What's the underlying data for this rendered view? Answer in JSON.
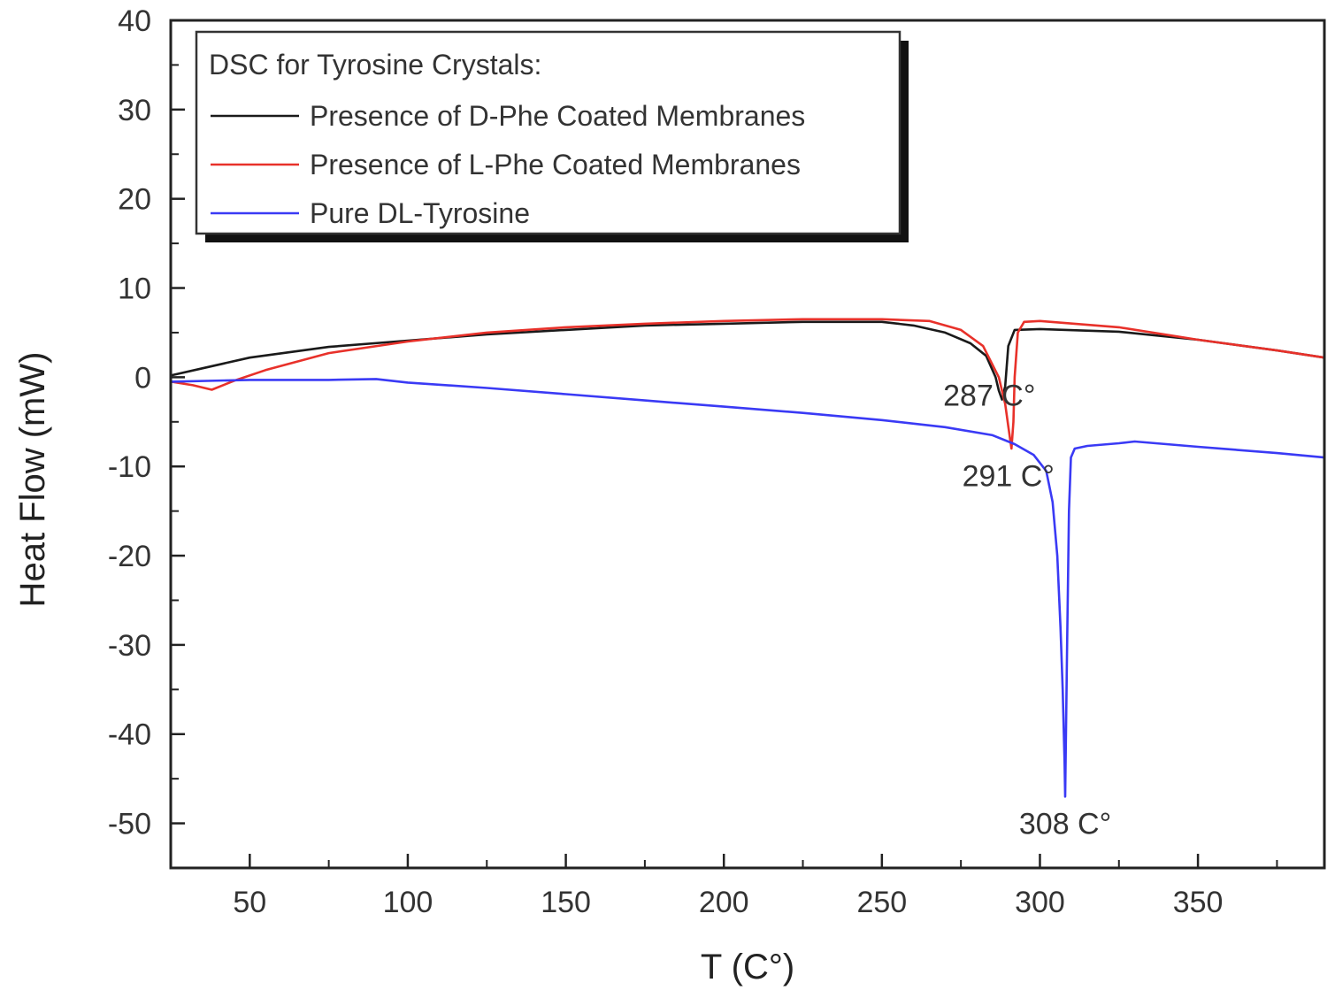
{
  "chart_data": {
    "type": "line",
    "xlabel": "T (C°)",
    "ylabel": "Heat Flow (mW)",
    "xlim": [
      25,
      390
    ],
    "ylim": [
      -55,
      40
    ],
    "x_ticks": [
      50,
      100,
      150,
      200,
      250,
      300,
      350
    ],
    "y_ticks": [
      40,
      30,
      20,
      10,
      0,
      -10,
      -20,
      -30,
      -40,
      -50
    ],
    "grid": false,
    "legend": {
      "title": "DSC for Tyrosine Crystals:",
      "placement": "top-left"
    },
    "series": [
      {
        "name": "Presence of D-Phe Coated Membranes",
        "color": "#1a1a1a",
        "points": [
          [
            25,
            0.2
          ],
          [
            35,
            1
          ],
          [
            50,
            2.2
          ],
          [
            75,
            3.4
          ],
          [
            100,
            4.1
          ],
          [
            125,
            4.8
          ],
          [
            150,
            5.3
          ],
          [
            175,
            5.8
          ],
          [
            200,
            6
          ],
          [
            225,
            6.2
          ],
          [
            250,
            6.2
          ],
          [
            260,
            5.8
          ],
          [
            270,
            5
          ],
          [
            278,
            3.8
          ],
          [
            283,
            2.4
          ],
          [
            286,
            0
          ],
          [
            287,
            -1.5
          ],
          [
            288,
            -2.5
          ],
          [
            289,
            -1
          ],
          [
            290,
            3.5
          ],
          [
            292,
            5.3
          ],
          [
            300,
            5.4
          ],
          [
            325,
            5.1
          ],
          [
            350,
            4.2
          ],
          [
            375,
            3
          ],
          [
            390,
            2.2
          ]
        ]
      },
      {
        "name": "Presence of L-Phe Coated Membranes",
        "color": "#e8312a",
        "points": [
          [
            25,
            -0.5
          ],
          [
            32,
            -0.9
          ],
          [
            38,
            -1.4
          ],
          [
            45,
            -0.4
          ],
          [
            55,
            0.8
          ],
          [
            75,
            2.7
          ],
          [
            100,
            4
          ],
          [
            125,
            5
          ],
          [
            150,
            5.6
          ],
          [
            175,
            6
          ],
          [
            200,
            6.3
          ],
          [
            225,
            6.5
          ],
          [
            250,
            6.5
          ],
          [
            265,
            6.3
          ],
          [
            275,
            5.3
          ],
          [
            282,
            3.5
          ],
          [
            287,
            0
          ],
          [
            289,
            -3
          ],
          [
            290,
            -5.5
          ],
          [
            291,
            -8
          ],
          [
            291.6,
            -5
          ],
          [
            292,
            0
          ],
          [
            293,
            5
          ],
          [
            295,
            6.2
          ],
          [
            300,
            6.3
          ],
          [
            325,
            5.6
          ],
          [
            350,
            4.2
          ],
          [
            375,
            3
          ],
          [
            390,
            2.2
          ]
        ]
      },
      {
        "name": "Pure DL-Tyrosine",
        "color": "#3a3af5",
        "points": [
          [
            25,
            -0.5
          ],
          [
            50,
            -0.3
          ],
          [
            75,
            -0.3
          ],
          [
            90,
            -0.2
          ],
          [
            100,
            -0.6
          ],
          [
            125,
            -1.2
          ],
          [
            150,
            -1.9
          ],
          [
            175,
            -2.6
          ],
          [
            200,
            -3.3
          ],
          [
            225,
            -4
          ],
          [
            250,
            -4.8
          ],
          [
            270,
            -5.6
          ],
          [
            285,
            -6.5
          ],
          [
            292,
            -7.5
          ],
          [
            298,
            -8.7
          ],
          [
            302,
            -10.5
          ],
          [
            304,
            -14
          ],
          [
            305.5,
            -20
          ],
          [
            306.5,
            -28
          ],
          [
            307.2,
            -35
          ],
          [
            307.8,
            -43
          ],
          [
            308,
            -47
          ],
          [
            308.6,
            -30
          ],
          [
            309.2,
            -15
          ],
          [
            309.8,
            -9
          ],
          [
            311,
            -8
          ],
          [
            315,
            -7.7
          ],
          [
            325,
            -7.4
          ],
          [
            330,
            -7.2
          ],
          [
            350,
            -7.8
          ],
          [
            375,
            -8.5
          ],
          [
            390,
            -9
          ]
        ]
      }
    ],
    "annotations": [
      {
        "text": "287 C°",
        "x": 284,
        "y": -2
      },
      {
        "text": "291 C°",
        "x": 290,
        "y": -11
      },
      {
        "text": "308 C°",
        "x": 308,
        "y": -50
      }
    ]
  }
}
